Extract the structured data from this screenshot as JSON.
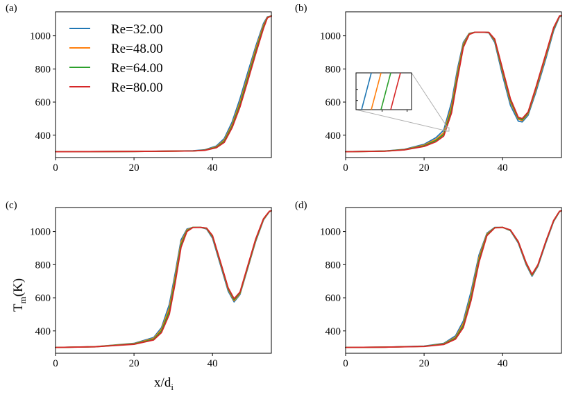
{
  "chart_data": {
    "type": "line",
    "ylabel_main": "T",
    "ylabel_sub": "m",
    "ylabel_unit": "(K)",
    "xlabel_main": "x/d",
    "xlabel_sub": "i",
    "xlim": [
      0,
      55
    ],
    "ylim": [
      265,
      1145
    ],
    "x_ticks": [
      0,
      20,
      40
    ],
    "y_ticks": [
      400,
      600,
      800,
      1000
    ],
    "colors": [
      "#1f77b4",
      "#ff7f0e",
      "#2ca02c",
      "#d62728"
    ],
    "legend": {
      "placement": "upper-left",
      "entries": [
        "Re=32.00",
        "Re=48.00",
        "Re=64.00",
        "Re=80.00"
      ]
    },
    "panels": [
      {
        "label": "(a)",
        "series": [
          {
            "name": "Re=32.00",
            "x": [
              0,
              20,
              35,
              38,
              41,
              43,
              45,
              47,
              49,
              51,
              53,
              54,
              55
            ],
            "y": [
              300,
              302,
              306,
              312,
              335,
              380,
              480,
              620,
              780,
              935,
              1075,
              1115,
              1120
            ]
          },
          {
            "name": "Re=48.00",
            "x": [
              0,
              20,
              35,
              38,
              41,
              43,
              45,
              47,
              49,
              51,
              53,
              54,
              55
            ],
            "y": [
              300,
              302,
              305,
              310,
              330,
              370,
              465,
              600,
              760,
              920,
              1065,
              1112,
              1120
            ]
          },
          {
            "name": "Re=64.00",
            "x": [
              0,
              20,
              35,
              38,
              41,
              43,
              45,
              47,
              49,
              51,
              53,
              54,
              55
            ],
            "y": [
              300,
              302,
              305,
              309,
              327,
              363,
              455,
              585,
              745,
              905,
              1055,
              1110,
              1120
            ]
          },
          {
            "name": "Re=80.00",
            "x": [
              0,
              20,
              35,
              38,
              41,
              43,
              45,
              47,
              49,
              51,
              53,
              54,
              55
            ],
            "y": [
              300,
              302,
              305,
              308,
              324,
              356,
              445,
              570,
              728,
              890,
              1045,
              1108,
              1120
            ]
          }
        ]
      },
      {
        "label": "(b)",
        "series": [
          {
            "name": "Re=32.00",
            "x": [
              0,
              10,
              15,
              20,
              23,
              25,
              27,
              28.5,
              30,
              31.5,
              33,
              35,
              36.5,
              38,
              40,
              42,
              44,
              45,
              46.5,
              48.5,
              51,
              53,
              54.5,
              55
            ],
            "y": [
              300,
              305,
              315,
              345,
              385,
              430,
              600,
              800,
              960,
              1015,
              1022,
              1022,
              1018,
              960,
              760,
              580,
              485,
              480,
              520,
              660,
              860,
              1030,
              1115,
              1120
            ]
          },
          {
            "name": "Re=48.00",
            "x": [
              0,
              10,
              15,
              20,
              23,
              25,
              27,
              28.5,
              30,
              31.5,
              33,
              35,
              36.5,
              38,
              40,
              42,
              44,
              45,
              46.5,
              48.5,
              51,
              53,
              54.5,
              55
            ],
            "y": [
              300,
              304,
              313,
              340,
              375,
              415,
              575,
              780,
              950,
              1013,
              1022,
              1022,
              1020,
              970,
              780,
              600,
              497,
              488,
              530,
              675,
              875,
              1040,
              1118,
              1120
            ]
          },
          {
            "name": "Re=64.00",
            "x": [
              0,
              10,
              15,
              20,
              23,
              25,
              27,
              28.5,
              30,
              31.5,
              33,
              35,
              36.5,
              38,
              40,
              42,
              44,
              45,
              46.5,
              48.5,
              51,
              53,
              54.5,
              55
            ],
            "y": [
              300,
              304,
              312,
              336,
              368,
              405,
              555,
              760,
              940,
              1010,
              1022,
              1022,
              1020,
              975,
              790,
              610,
              503,
              493,
              535,
              685,
              885,
              1045,
              1119,
              1120
            ]
          },
          {
            "name": "Re=80.00",
            "x": [
              0,
              10,
              15,
              20,
              23,
              25,
              27,
              28.5,
              30,
              31.5,
              33,
              35,
              36.5,
              38,
              40,
              42,
              44,
              45,
              46.5,
              48.5,
              51,
              53,
              54.5,
              55
            ],
            "y": [
              300,
              303,
              311,
              332,
              360,
              395,
              535,
              740,
              930,
              1008,
              1022,
              1022,
              1021,
              980,
              800,
              620,
              508,
              500,
              540,
              690,
              890,
              1050,
              1120,
              1122
            ]
          }
        ]
      },
      {
        "label": "(c)",
        "series": [
          {
            "name": "Re=32.00",
            "x": [
              0,
              10,
              20,
              25,
              27,
              29,
              30.5,
              32,
              33.5,
              35,
              37,
              38.5,
              40,
              42,
              44,
              45.5,
              47,
              49,
              51,
              53,
              54.5,
              55
            ],
            "y": [
              300,
              305,
              325,
              360,
              420,
              560,
              750,
              950,
              1015,
              1025,
              1025,
              1015,
              960,
              800,
              640,
              575,
              620,
              780,
              940,
              1070,
              1120,
              1125
            ]
          },
          {
            "name": "Re=48.00",
            "x": [
              0,
              10,
              20,
              25,
              27,
              29,
              30.5,
              32,
              33.5,
              35,
              37,
              38.5,
              40,
              42,
              44,
              45.5,
              47,
              49,
              51,
              53,
              54.5,
              55
            ],
            "y": [
              300,
              305,
              323,
              355,
              410,
              540,
              730,
              935,
              1010,
              1025,
              1025,
              1018,
              968,
              810,
              650,
              582,
              625,
              785,
              945,
              1073,
              1121,
              1125
            ]
          },
          {
            "name": "Re=64.00",
            "x": [
              0,
              10,
              20,
              25,
              27,
              29,
              30.5,
              32,
              33.5,
              35,
              37,
              38.5,
              40,
              42,
              44,
              45.5,
              47,
              49,
              51,
              53,
              54.5,
              55
            ],
            "y": [
              300,
              304,
              321,
              350,
              400,
              520,
              710,
              920,
              1005,
              1025,
              1025,
              1020,
              972,
              815,
              655,
              588,
              630,
              790,
              950,
              1076,
              1122,
              1125
            ]
          },
          {
            "name": "Re=80.00",
            "x": [
              0,
              10,
              20,
              25,
              27,
              29,
              30.5,
              32,
              33.5,
              35,
              37,
              38.5,
              40,
              42,
              44,
              45.5,
              47,
              49,
              51,
              53,
              54.5,
              55
            ],
            "y": [
              300,
              304,
              319,
              345,
              390,
              500,
              690,
              905,
              1000,
              1024,
              1025,
              1021,
              976,
              820,
              660,
              595,
              635,
              795,
              955,
              1078,
              1123,
              1125
            ]
          }
        ]
      },
      {
        "label": "(d)",
        "series": [
          {
            "name": "Re=32.00",
            "x": [
              0,
              10,
              20,
              25,
              28,
              30,
              32,
              34,
              36,
              38,
              40,
              42,
              44,
              46,
              47.5,
              49,
              51,
              53,
              54.5,
              55
            ],
            "y": [
              300,
              302,
              308,
              325,
              370,
              460,
              640,
              860,
              990,
              1025,
              1025,
              1005,
              930,
              800,
              730,
              790,
              930,
              1060,
              1120,
              1125
            ]
          },
          {
            "name": "Re=48.00",
            "x": [
              0,
              10,
              20,
              25,
              28,
              30,
              32,
              34,
              36,
              38,
              40,
              42,
              44,
              46,
              47.5,
              49,
              51,
              53,
              54.5,
              55
            ],
            "y": [
              300,
              302,
              307,
              322,
              362,
              445,
              620,
              845,
              985,
              1024,
              1025,
              1007,
              935,
              806,
              735,
              795,
              935,
              1063,
              1121,
              1125
            ]
          },
          {
            "name": "Re=64.00",
            "x": [
              0,
              10,
              20,
              25,
              28,
              30,
              32,
              34,
              36,
              38,
              40,
              42,
              44,
              46,
              47.5,
              49,
              51,
              53,
              54.5,
              55
            ],
            "y": [
              300,
              302,
              307,
              320,
              356,
              432,
              602,
              830,
              980,
              1023,
              1025,
              1008,
              938,
              810,
              738,
              798,
              938,
              1065,
              1122,
              1125
            ]
          },
          {
            "name": "Re=80.00",
            "x": [
              0,
              10,
              20,
              25,
              28,
              30,
              32,
              34,
              36,
              38,
              40,
              42,
              44,
              46,
              47.5,
              49,
              51,
              53,
              54.5,
              55
            ],
            "y": [
              300,
              302,
              306,
              318,
              350,
              420,
              585,
              815,
              975,
              1022,
              1025,
              1010,
              940,
              813,
              742,
              800,
              940,
              1067,
              1123,
              1125
            ]
          }
        ]
      }
    ]
  }
}
